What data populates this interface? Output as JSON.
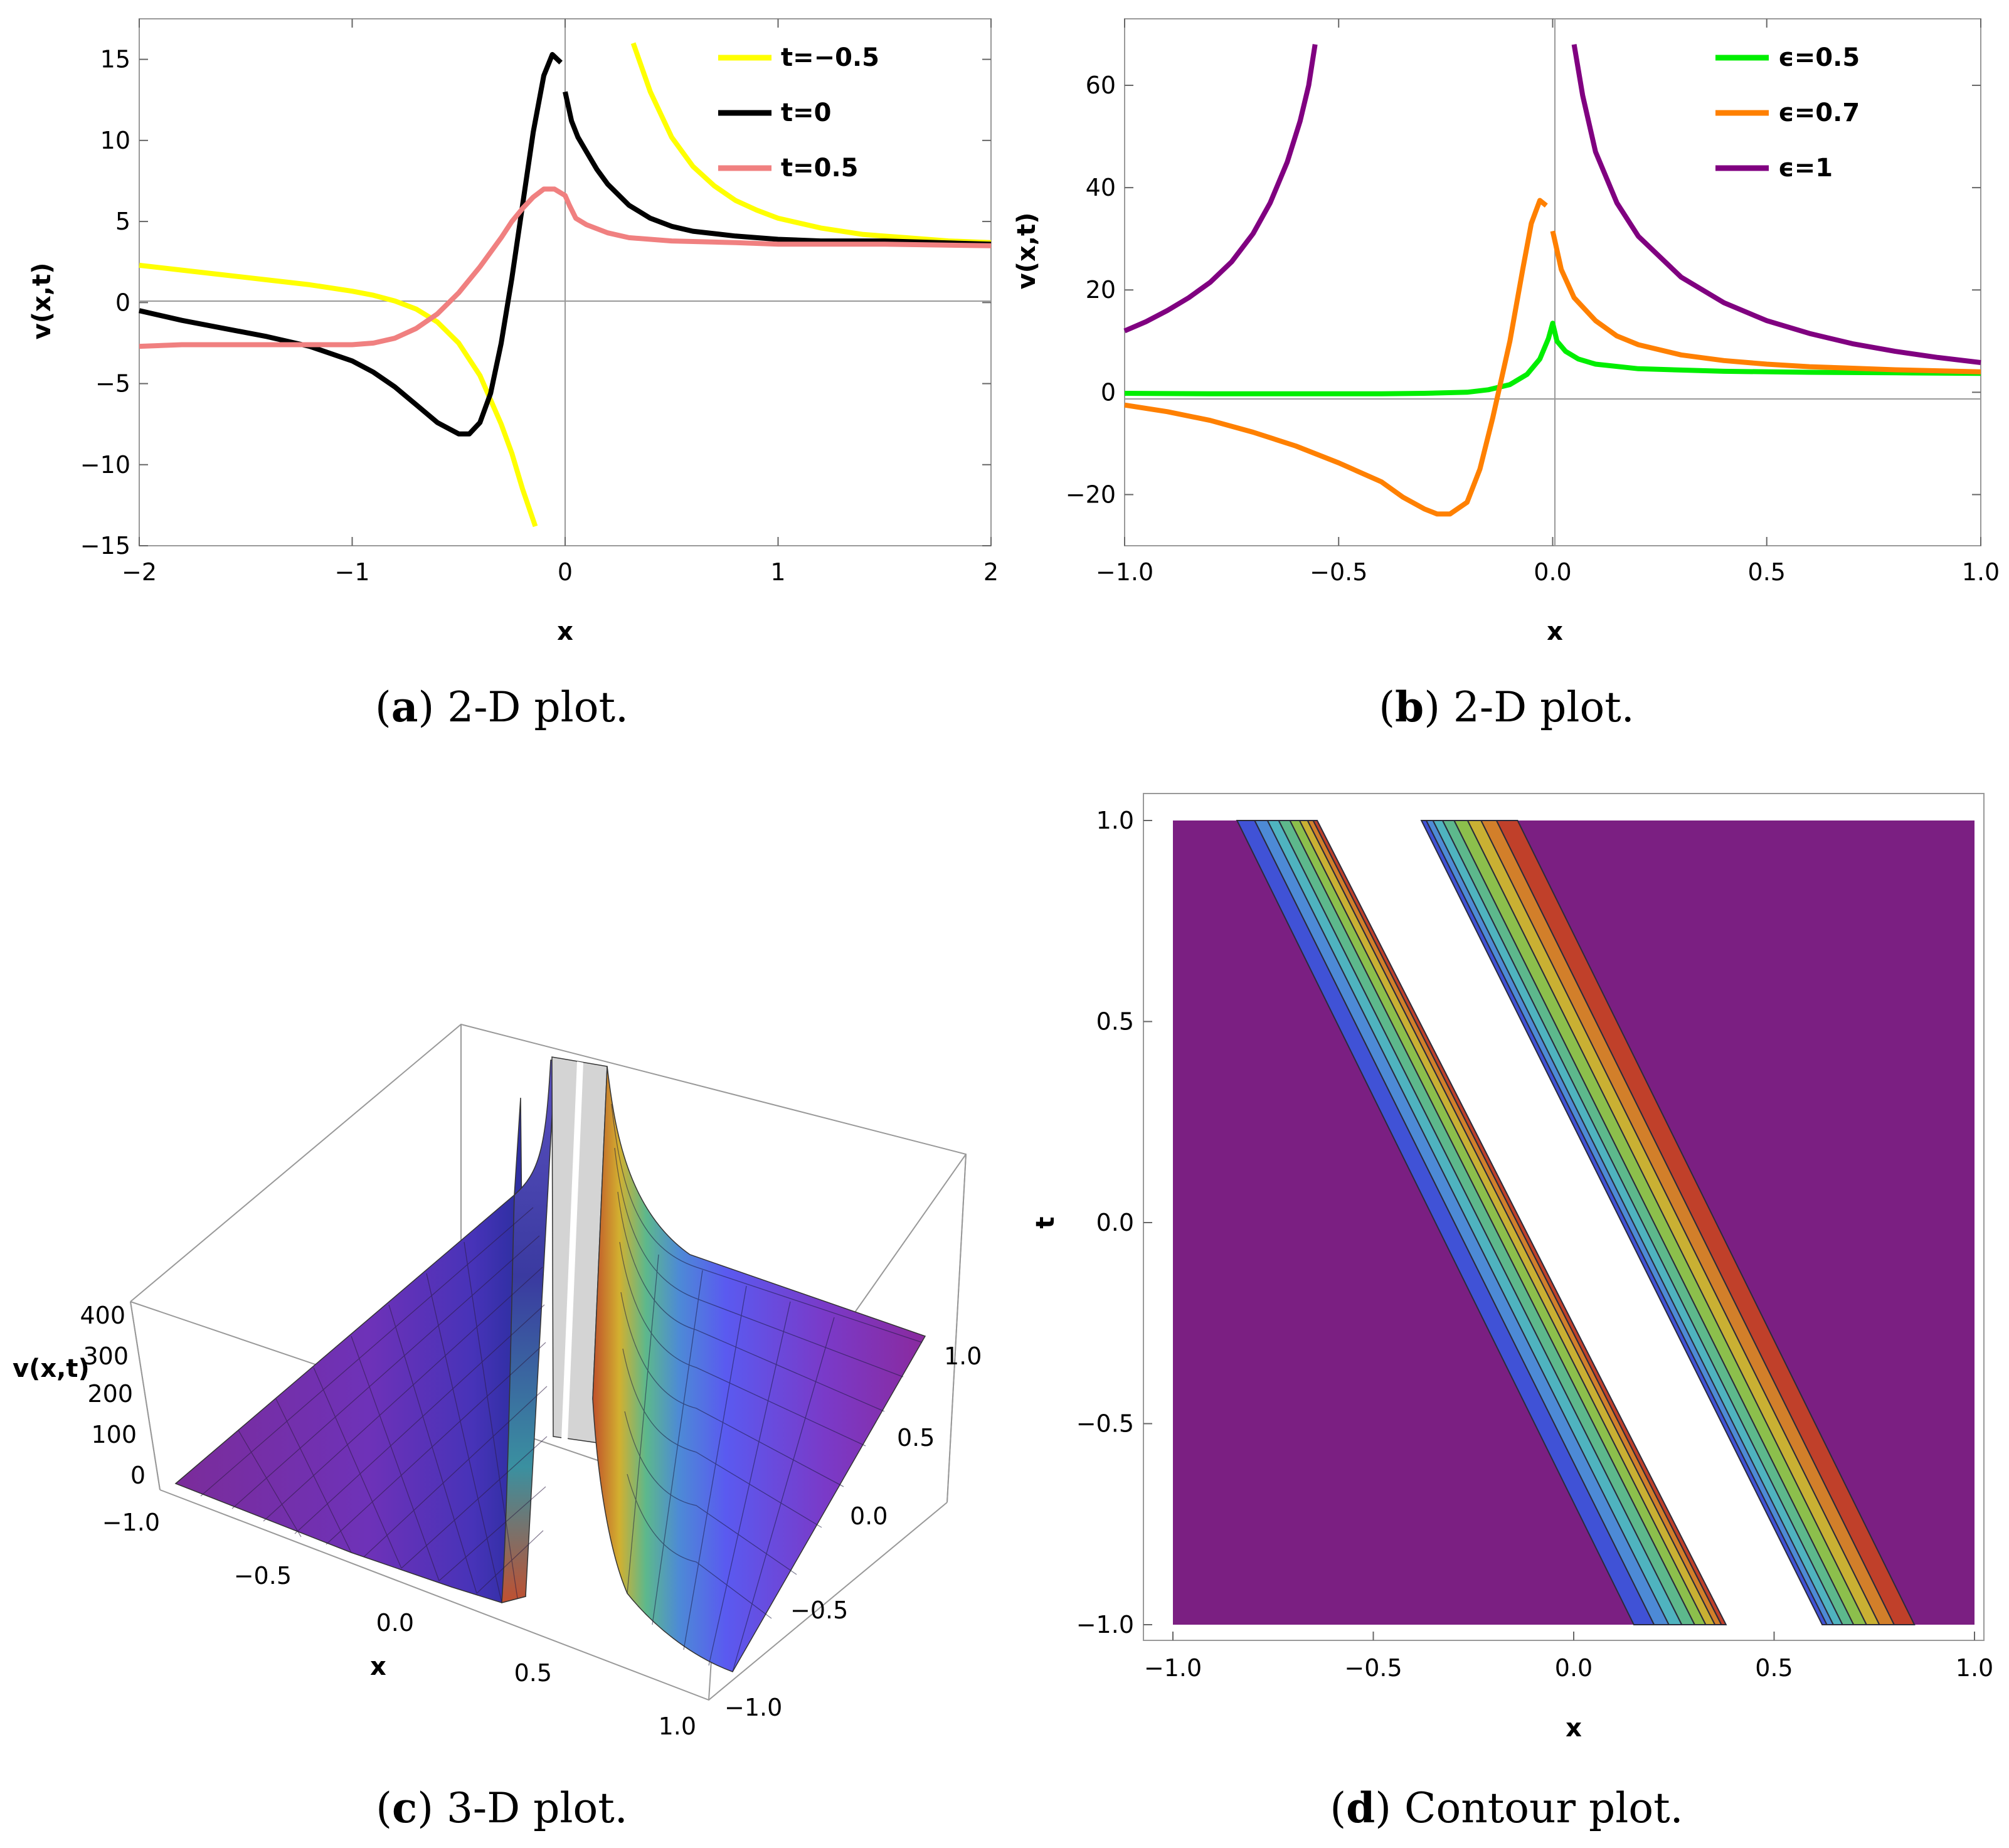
{
  "chart_data": [
    {
      "id": "a",
      "type": "line",
      "caption": {
        "letter": "a",
        "text": "2-D plot."
      },
      "xlabel": "x",
      "ylabel": "v(x,t)",
      "xlim": [
        -2,
        2
      ],
      "ylim": [
        -15,
        17.5
      ],
      "xticks": [
        -2,
        -1,
        0,
        1,
        2
      ],
      "xtick_labels": [
        "−2",
        "−1",
        "0",
        "1",
        "2"
      ],
      "yticks": [
        -15,
        -10,
        -5,
        0,
        5,
        10,
        15
      ],
      "ytick_labels": [
        "−15",
        "−10",
        "−5",
        "0",
        "5",
        "10",
        "15"
      ],
      "legend_position": "top-right",
      "series": [
        {
          "name": "t=−0.5",
          "color": "#FFFF00",
          "segments": [
            [
              [
                -2,
                2.3
              ],
              [
                -1.8,
                2.0
              ],
              [
                -1.6,
                1.7
              ],
              [
                -1.4,
                1.4
              ],
              [
                -1.2,
                1.1
              ],
              [
                -1.0,
                0.7
              ],
              [
                -0.9,
                0.45
              ],
              [
                -0.8,
                0.1
              ],
              [
                -0.7,
                -0.4
              ],
              [
                -0.6,
                -1.2
              ],
              [
                -0.5,
                -2.5
              ],
              [
                -0.4,
                -4.5
              ],
              [
                -0.3,
                -7.5
              ],
              [
                -0.25,
                -9.3
              ],
              [
                -0.2,
                -11.5
              ],
              [
                -0.14,
                -13.8
              ]
            ],
            [
              [
                0.32,
                16.0
              ],
              [
                0.4,
                13.0
              ],
              [
                0.5,
                10.2
              ],
              [
                0.6,
                8.4
              ],
              [
                0.7,
                7.2
              ],
              [
                0.8,
                6.3
              ],
              [
                0.9,
                5.7
              ],
              [
                1.0,
                5.2
              ],
              [
                1.2,
                4.6
              ],
              [
                1.4,
                4.2
              ],
              [
                1.6,
                4.0
              ],
              [
                1.8,
                3.8
              ],
              [
                2.0,
                3.7
              ]
            ]
          ]
        },
        {
          "name": "t=0",
          "color": "#000000",
          "segments": [
            [
              [
                -2,
                -0.5
              ],
              [
                -1.8,
                -1.1
              ],
              [
                -1.6,
                -1.6
              ],
              [
                -1.4,
                -2.1
              ],
              [
                -1.2,
                -2.7
              ],
              [
                -1.0,
                -3.6
              ],
              [
                -0.9,
                -4.3
              ],
              [
                -0.8,
                -5.2
              ],
              [
                -0.7,
                -6.3
              ],
              [
                -0.6,
                -7.4
              ],
              [
                -0.5,
                -8.1
              ],
              [
                -0.45,
                -8.1
              ],
              [
                -0.4,
                -7.4
              ],
              [
                -0.35,
                -5.6
              ],
              [
                -0.3,
                -2.5
              ],
              [
                -0.25,
                1.5
              ],
              [
                -0.2,
                6.0
              ],
              [
                -0.15,
                10.5
              ],
              [
                -0.1,
                14.0
              ],
              [
                -0.06,
                15.3
              ],
              [
                -0.02,
                14.8
              ]
            ],
            [
              [
                0.0,
                13.0
              ],
              [
                0.03,
                11.2
              ],
              [
                0.06,
                10.2
              ],
              [
                0.1,
                9.3
              ],
              [
                0.15,
                8.2
              ],
              [
                0.2,
                7.3
              ],
              [
                0.3,
                6.0
              ],
              [
                0.4,
                5.2
              ],
              [
                0.5,
                4.7
              ],
              [
                0.6,
                4.4
              ],
              [
                0.8,
                4.1
              ],
              [
                1.0,
                3.9
              ],
              [
                1.2,
                3.8
              ],
              [
                1.5,
                3.8
              ],
              [
                2.0,
                3.6
              ]
            ]
          ]
        },
        {
          "name": "t=0.5",
          "color": "#F08080",
          "segments": [
            [
              [
                -2,
                -2.7
              ],
              [
                -1.8,
                -2.6
              ],
              [
                -1.6,
                -2.6
              ],
              [
                -1.4,
                -2.6
              ],
              [
                -1.2,
                -2.6
              ],
              [
                -1.0,
                -2.6
              ],
              [
                -0.9,
                -2.5
              ],
              [
                -0.8,
                -2.2
              ],
              [
                -0.7,
                -1.6
              ],
              [
                -0.6,
                -0.7
              ],
              [
                -0.5,
                0.6
              ],
              [
                -0.4,
                2.2
              ],
              [
                -0.3,
                4.0
              ],
              [
                -0.25,
                5.0
              ],
              [
                -0.2,
                5.8
              ],
              [
                -0.15,
                6.5
              ],
              [
                -0.1,
                7.0
              ],
              [
                -0.05,
                7.0
              ],
              [
                0.0,
                6.6
              ],
              [
                0.02,
                6.0
              ],
              [
                0.05,
                5.2
              ],
              [
                0.1,
                4.8
              ],
              [
                0.2,
                4.3
              ],
              [
                0.3,
                4.0
              ],
              [
                0.5,
                3.8
              ],
              [
                0.8,
                3.7
              ],
              [
                1.0,
                3.6
              ],
              [
                1.5,
                3.6
              ],
              [
                2.0,
                3.5
              ]
            ]
          ]
        }
      ]
    },
    {
      "id": "b",
      "type": "line",
      "caption": {
        "letter": "b",
        "text": "2-D plot."
      },
      "xlabel": "x",
      "ylabel": "v(x,t)",
      "xlim": [
        -1,
        1
      ],
      "ylim": [
        -30,
        73
      ],
      "xticks": [
        -1.0,
        -0.5,
        0.0,
        0.5,
        1.0
      ],
      "xtick_labels": [
        "−1.0",
        "−0.5",
        "0.0",
        "0.5",
        "1.0"
      ],
      "yticks": [
        -20,
        0,
        20,
        40,
        60
      ],
      "ytick_labels": [
        "−20",
        "0",
        "20",
        "40",
        "60"
      ],
      "legend_position": "top-right",
      "series": [
        {
          "name": "ϵ=0.5",
          "color": "#00EE00",
          "segments": [
            [
              [
                -1,
                -0.2
              ],
              [
                -0.8,
                -0.3
              ],
              [
                -0.6,
                -0.3
              ],
              [
                -0.4,
                -0.3
              ],
              [
                -0.3,
                -0.2
              ],
              [
                -0.2,
                0.0
              ],
              [
                -0.15,
                0.5
              ],
              [
                -0.1,
                1.5
              ],
              [
                -0.06,
                3.5
              ],
              [
                -0.03,
                6.5
              ],
              [
                -0.01,
                10.5
              ],
              [
                0.0,
                13.5
              ],
              [
                0.01,
                10.0
              ],
              [
                0.03,
                8.0
              ],
              [
                0.06,
                6.5
              ],
              [
                0.1,
                5.5
              ],
              [
                0.2,
                4.6
              ],
              [
                0.4,
                4.1
              ],
              [
                0.6,
                3.9
              ],
              [
                0.8,
                3.8
              ],
              [
                1.0,
                3.7
              ]
            ]
          ]
        },
        {
          "name": "ϵ=0.7",
          "color": "#FF8000",
          "segments": [
            [
              [
                -1,
                -2.5
              ],
              [
                -0.9,
                -3.8
              ],
              [
                -0.8,
                -5.5
              ],
              [
                -0.7,
                -7.8
              ],
              [
                -0.6,
                -10.5
              ],
              [
                -0.5,
                -13.8
              ],
              [
                -0.4,
                -17.5
              ],
              [
                -0.35,
                -20.5
              ],
              [
                -0.3,
                -22.8
              ],
              [
                -0.27,
                -23.8
              ],
              [
                -0.24,
                -23.8
              ],
              [
                -0.2,
                -21.5
              ],
              [
                -0.17,
                -15.0
              ],
              [
                -0.14,
                -5.0
              ],
              [
                -0.1,
                10.0
              ],
              [
                -0.07,
                24.0
              ],
              [
                -0.05,
                33.0
              ],
              [
                -0.03,
                37.5
              ],
              [
                -0.015,
                36.5
              ]
            ],
            [
              [
                0.0,
                31.5
              ],
              [
                0.02,
                24.0
              ],
              [
                0.05,
                18.5
              ],
              [
                0.1,
                14.0
              ],
              [
                0.15,
                11.0
              ],
              [
                0.2,
                9.3
              ],
              [
                0.3,
                7.3
              ],
              [
                0.4,
                6.2
              ],
              [
                0.5,
                5.5
              ],
              [
                0.6,
                5.0
              ],
              [
                0.7,
                4.7
              ],
              [
                0.8,
                4.4
              ],
              [
                1.0,
                4.0
              ]
            ]
          ]
        },
        {
          "name": "ϵ=1",
          "color": "#800080",
          "segments": [
            [
              [
                -1,
                12.0
              ],
              [
                -0.95,
                13.8
              ],
              [
                -0.9,
                16.0
              ],
              [
                -0.85,
                18.5
              ],
              [
                -0.8,
                21.5
              ],
              [
                -0.75,
                25.5
              ],
              [
                -0.7,
                31.0
              ],
              [
                -0.66,
                37.0
              ],
              [
                -0.62,
                45.0
              ],
              [
                -0.59,
                53.0
              ],
              [
                -0.57,
                60.0
              ],
              [
                -0.555,
                68.0
              ]
            ],
            [
              [
                0.05,
                68.0
              ],
              [
                0.07,
                58.0
              ],
              [
                0.1,
                47.0
              ],
              [
                0.15,
                37.0
              ],
              [
                0.2,
                30.5
              ],
              [
                0.3,
                22.5
              ],
              [
                0.4,
                17.5
              ],
              [
                0.5,
                14.0
              ],
              [
                0.6,
                11.5
              ],
              [
                0.7,
                9.5
              ],
              [
                0.8,
                8.0
              ],
              [
                0.9,
                6.8
              ],
              [
                1.0,
                5.8
              ]
            ]
          ]
        }
      ]
    },
    {
      "id": "c",
      "type": "surface3d",
      "caption": {
        "letter": "c",
        "text": "3-D plot."
      },
      "xlabel": "x",
      "zlabel": "v(x,t)",
      "xticks": [
        "−1.0",
        "−0.5",
        "0.0",
        "0.5",
        "1.0"
      ],
      "yticks": [
        "1.0",
        "0.5",
        "0.0",
        "−0.5",
        "−1.0"
      ],
      "zticks": [
        "400",
        "300",
        "200",
        "100",
        "0"
      ]
    },
    {
      "id": "d",
      "type": "contour",
      "caption": {
        "letter": "d",
        "text": "Contour plot."
      },
      "xlabel": "x",
      "ylabel": "t",
      "xlim": [
        -1,
        1
      ],
      "ylim": [
        -1,
        1
      ],
      "xticks": [
        -1.0,
        -0.5,
        0.0,
        0.5,
        1.0
      ],
      "xtick_labels": [
        "−1.0",
        "−0.5",
        "0.0",
        "0.5",
        "1.0"
      ],
      "yticks": [
        -1.0,
        -0.5,
        0.0,
        0.5,
        1.0
      ],
      "ytick_labels": [
        "−1.0",
        "−0.5",
        "0.0",
        "0.5",
        "1.0"
      ],
      "background_color": "#7B1F82",
      "bands": [
        {
          "left_top": -0.84,
          "left_bottom": 0.15,
          "right_top": -0.64,
          "right_bottom": 0.38
        },
        {
          "left_top": -0.38,
          "left_bottom": 0.62,
          "right_top": -0.14,
          "right_bottom": 0.85
        }
      ],
      "band_colors": [
        "#4052D6",
        "#4D8AD6",
        "#4FB3BF",
        "#5DB88C",
        "#8CBF4C",
        "#C9B033",
        "#D27F2A",
        "#C0402A"
      ]
    }
  ]
}
